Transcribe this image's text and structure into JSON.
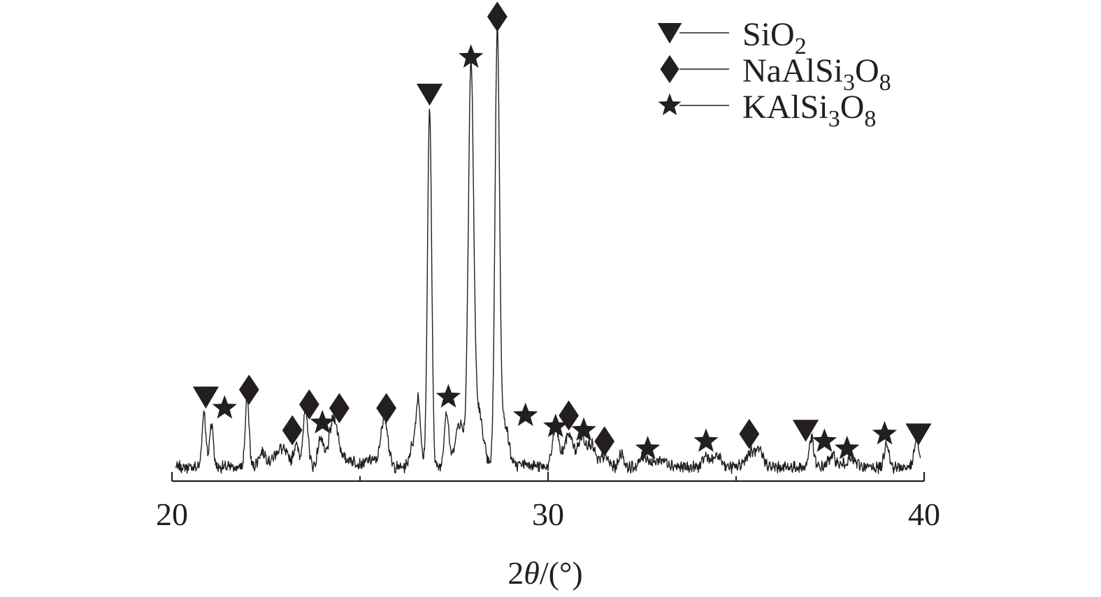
{
  "chart_data": {
    "type": "line",
    "xlabel": {
      "prefix": "2",
      "theta": "θ",
      "suffix": "/(°)"
    },
    "ylabel": "",
    "xlim": [
      20,
      40
    ],
    "xticks_major": [
      20,
      30,
      40
    ],
    "xticks_minor": [
      25,
      35
    ],
    "legend": {
      "position": "top-right",
      "entries": [
        {
          "phase": "SiO2",
          "marker": "triangle-down",
          "parts": [
            {
              "t": "SiO",
              "sub": false
            },
            {
              "t": "2",
              "sub": true
            }
          ]
        },
        {
          "phase": "NaAlSi3O8",
          "marker": "diamond",
          "parts": [
            {
              "t": "NaAlSi",
              "sub": false
            },
            {
              "t": "3",
              "sub": true
            },
            {
              "t": "O",
              "sub": false
            },
            {
              "t": "8",
              "sub": true
            }
          ]
        },
        {
          "phase": "KAlSi3O8",
          "marker": "star",
          "parts": [
            {
              "t": "KAlSi",
              "sub": false
            },
            {
              "t": "3",
              "sub": true
            },
            {
              "t": "O",
              "sub": false
            },
            {
              "t": "8",
              "sub": true
            }
          ]
        }
      ]
    },
    "baseline": 3,
    "peaks": [
      {
        "x": 20.85,
        "h": 15,
        "w": 0.05
      },
      {
        "x": 21.05,
        "h": 12,
        "w": 0.05
      },
      {
        "x": 22.0,
        "h": 19,
        "w": 0.05
      },
      {
        "x": 22.4,
        "h": 4,
        "w": 0.1
      },
      {
        "x": 22.9,
        "h": 5,
        "w": 0.18
      },
      {
        "x": 23.3,
        "h": 6,
        "w": 0.06
      },
      {
        "x": 23.55,
        "h": 15,
        "w": 0.07
      },
      {
        "x": 23.95,
        "h": 8,
        "w": 0.07
      },
      {
        "x": 24.3,
        "h": 13,
        "w": 0.12
      },
      {
        "x": 24.7,
        "h": 2,
        "w": 0.2
      },
      {
        "x": 25.3,
        "h": 2,
        "w": 0.15
      },
      {
        "x": 25.65,
        "h": 14,
        "w": 0.09
      },
      {
        "x": 26.4,
        "h": 6,
        "w": 0.08
      },
      {
        "x": 26.55,
        "h": 18,
        "w": 0.06
      },
      {
        "x": 26.85,
        "h": 97,
        "w": 0.055
      },
      {
        "x": 27.3,
        "h": 15,
        "w": 0.06
      },
      {
        "x": 27.65,
        "h": 12,
        "w": 0.12
      },
      {
        "x": 27.95,
        "h": 106,
        "w": 0.07
      },
      {
        "x": 28.15,
        "h": 15,
        "w": 0.12
      },
      {
        "x": 28.65,
        "h": 118,
        "w": 0.06
      },
      {
        "x": 28.85,
        "h": 12,
        "w": 0.1
      },
      {
        "x": 29.4,
        "h": 1,
        "w": 0.2
      },
      {
        "x": 30.2,
        "h": 11,
        "w": 0.08
      },
      {
        "x": 30.55,
        "h": 9,
        "w": 0.12
      },
      {
        "x": 30.9,
        "h": 8,
        "w": 0.1
      },
      {
        "x": 31.15,
        "h": 6,
        "w": 0.1
      },
      {
        "x": 31.5,
        "h": 3,
        "w": 0.1
      },
      {
        "x": 31.95,
        "h": 4,
        "w": 0.06
      },
      {
        "x": 32.55,
        "h": 3,
        "w": 0.1
      },
      {
        "x": 33.0,
        "h": 2,
        "w": 0.2
      },
      {
        "x": 34.2,
        "h": 3,
        "w": 0.08
      },
      {
        "x": 34.5,
        "h": 3,
        "w": 0.12
      },
      {
        "x": 35.4,
        "h": 4,
        "w": 0.15
      },
      {
        "x": 35.65,
        "h": 3,
        "w": 0.1
      },
      {
        "x": 37.0,
        "h": 8,
        "w": 0.06
      },
      {
        "x": 37.55,
        "h": 3,
        "w": 0.1
      },
      {
        "x": 38.05,
        "h": 2,
        "w": 0.15
      },
      {
        "x": 39.0,
        "h": 7,
        "w": 0.06
      },
      {
        "x": 39.8,
        "h": 8,
        "w": 0.06
      }
    ],
    "markers": [
      {
        "x": 20.9,
        "y": 22,
        "type": "triangle-down"
      },
      {
        "x": 21.4,
        "y": 19,
        "type": "star"
      },
      {
        "x": 22.05,
        "y": 24,
        "type": "diamond"
      },
      {
        "x": 23.2,
        "y": 13,
        "type": "diamond"
      },
      {
        "x": 23.65,
        "y": 20,
        "type": "diamond"
      },
      {
        "x": 24.0,
        "y": 15,
        "type": "star"
      },
      {
        "x": 24.45,
        "y": 19,
        "type": "diamond"
      },
      {
        "x": 25.7,
        "y": 19,
        "type": "diamond"
      },
      {
        "x": 26.85,
        "y": 104,
        "type": "triangle-down"
      },
      {
        "x": 27.35,
        "y": 22,
        "type": "star"
      },
      {
        "x": 27.95,
        "y": 114,
        "type": "star"
      },
      {
        "x": 28.65,
        "y": 125,
        "type": "diamond"
      },
      {
        "x": 29.4,
        "y": 17,
        "type": "star"
      },
      {
        "x": 30.2,
        "y": 14,
        "type": "star"
      },
      {
        "x": 30.55,
        "y": 17,
        "type": "diamond"
      },
      {
        "x": 30.95,
        "y": 13,
        "type": "star"
      },
      {
        "x": 31.5,
        "y": 10,
        "type": "diamond"
      },
      {
        "x": 32.65,
        "y": 8,
        "type": "star"
      },
      {
        "x": 34.2,
        "y": 10,
        "type": "star"
      },
      {
        "x": 35.35,
        "y": 12,
        "type": "diamond"
      },
      {
        "x": 36.85,
        "y": 13,
        "type": "triangle-down"
      },
      {
        "x": 37.35,
        "y": 10,
        "type": "star"
      },
      {
        "x": 37.95,
        "y": 8,
        "type": "star"
      },
      {
        "x": 38.95,
        "y": 12,
        "type": "star"
      },
      {
        "x": 39.85,
        "y": 12,
        "type": "triangle-down"
      }
    ]
  }
}
